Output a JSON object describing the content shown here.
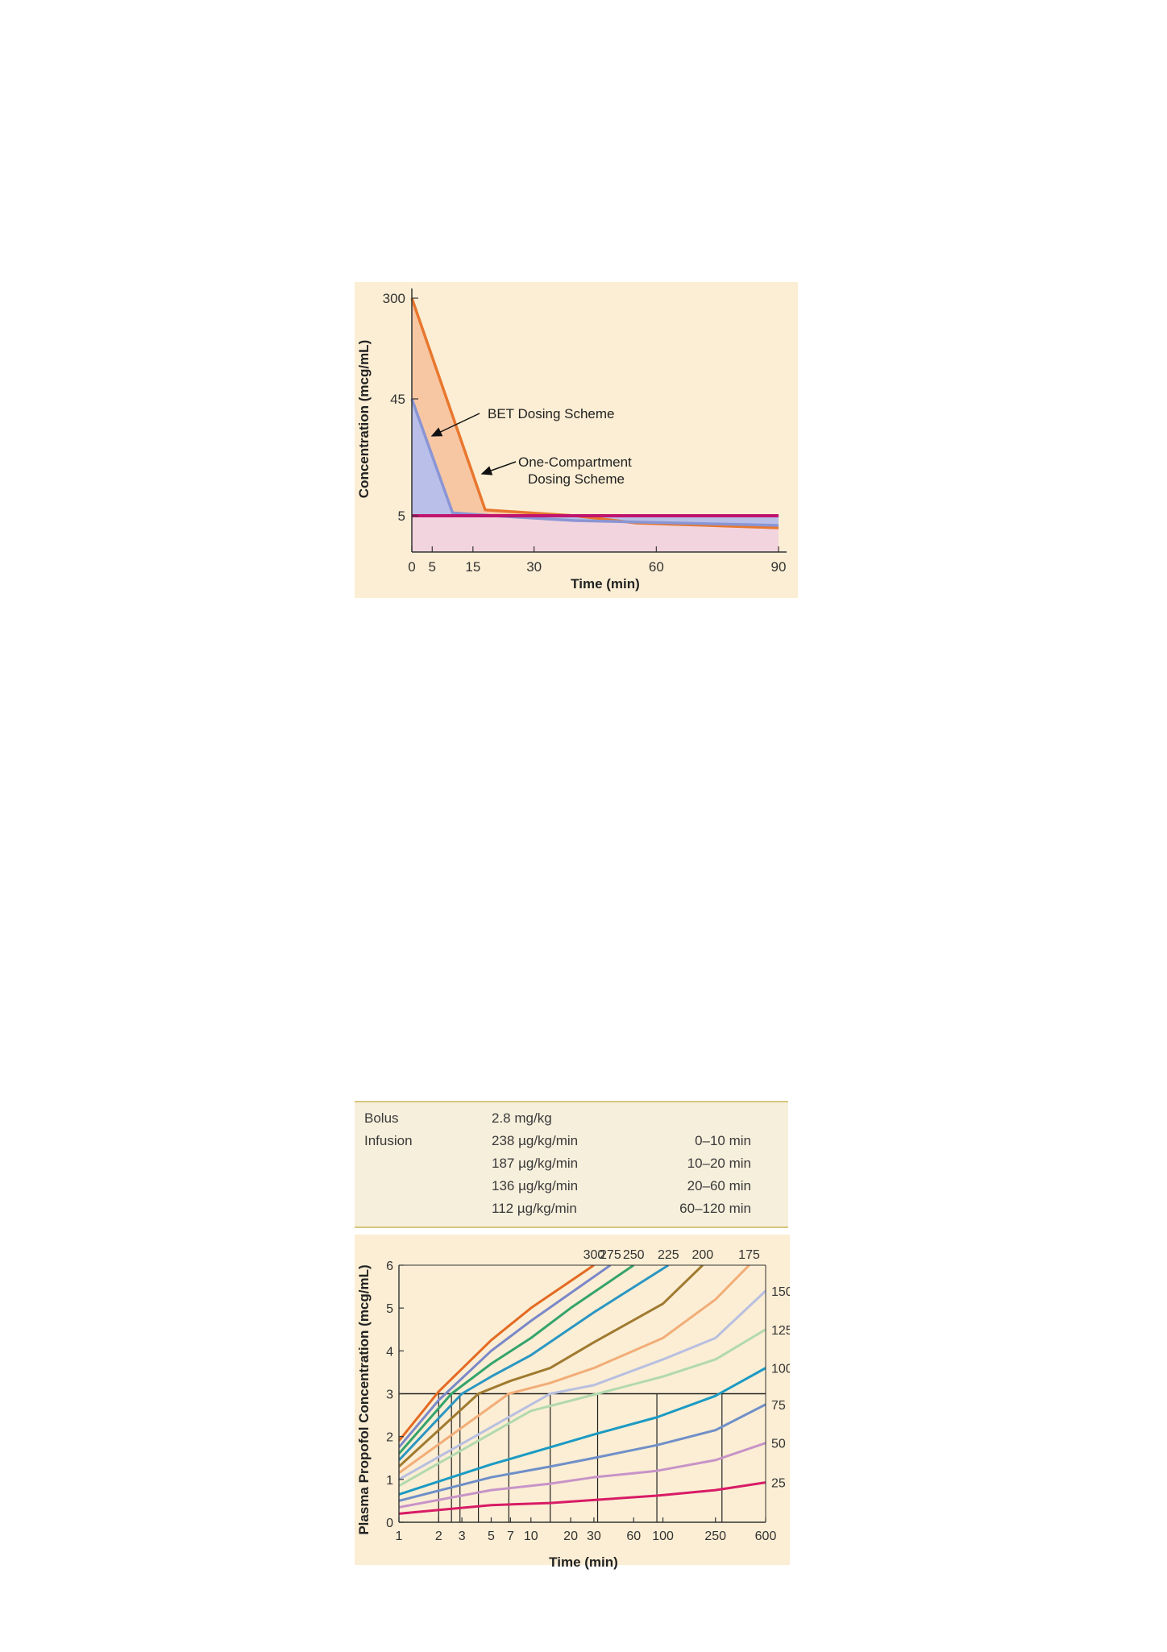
{
  "charts": [
    {
      "chart_data": {
        "type": "area",
        "xlabel": "Time (min)",
        "ylabel": "Concentration (mcg/mL)",
        "xticks": [
          0,
          5,
          15,
          30,
          60,
          90
        ],
        "yticks": [
          5,
          45,
          300
        ],
        "xlim": [
          0,
          92
        ],
        "ylim_label": "non-linear scale: 5, 45, 300",
        "colors": {
          "background": "#fbeed4",
          "one_compartment": "#e8772e",
          "bet": "#8a95d4",
          "target": "#c0156e"
        },
        "series": [
          {
            "name": "One-Compartment Dosing Scheme",
            "x": [
              0,
              18,
              40,
              55,
              90
            ],
            "y": [
              300,
              7,
              5,
              4.4,
              4
            ]
          },
          {
            "name": "BET Dosing Scheme",
            "x": [
              0,
              10,
              20,
              40,
              90
            ],
            "y": [
              45,
              6,
              5,
              4.6,
              4.2
            ]
          },
          {
            "name": "",
            "x": [
              0,
              90
            ],
            "y": [
              5,
              5
            ]
          }
        ],
        "annotations": [
          "BET Dosing Scheme",
          "One-Compartment",
          "Dosing Scheme"
        ]
      }
    },
    {
      "table": {
        "rows": [
          {
            "label": "Bolus",
            "rate": "2.8 mg/kg",
            "time": ""
          },
          {
            "label": "Infusion",
            "rate": "238 µg/kg/min",
            "time": "0–10 min"
          },
          {
            "label": "",
            "rate": "187 µg/kg/min",
            "time": "10–20 min"
          },
          {
            "label": "",
            "rate": "136 µg/kg/min",
            "time": "20–60 min"
          },
          {
            "label": "",
            "rate": "112 µg/kg/min",
            "time": "60–120 min"
          }
        ]
      }
    },
    {
      "chart_data": {
        "type": "line",
        "xlabel": "Time (min)",
        "ylabel": "Plasma Propofol Concentration (mcg/mL)",
        "xscale": "log",
        "xticks": [
          1,
          2,
          3,
          5,
          7,
          10,
          20,
          30,
          60,
          100,
          250,
          600
        ],
        "yticks": [
          0,
          1,
          2,
          3,
          4,
          5,
          6
        ],
        "xlim": [
          1,
          600
        ],
        "ylim": [
          0,
          6
        ],
        "reference_line_y": 3,
        "vertical_lines_x": [
          2,
          2.5,
          2.9,
          4,
          6.8,
          14,
          32,
          90,
          280
        ],
        "series": [
          {
            "name": "300",
            "color": "#e36a22",
            "x": [
              1,
              2,
              5,
              10,
              30
            ],
            "y": [
              1.9,
              3.05,
              4.25,
              5,
              6
            ]
          },
          {
            "name": "275",
            "color": "#7b88c8",
            "x": [
              1,
              2,
              5,
              10,
              40
            ],
            "y": [
              1.75,
              2.85,
              4,
              4.7,
              6
            ]
          },
          {
            "name": "250",
            "color": "#35a36c",
            "x": [
              1,
              2.5,
              5,
              10,
              20,
              60
            ],
            "y": [
              1.6,
              3,
              3.7,
              4.3,
              5,
              6
            ]
          },
          {
            "name": "225",
            "color": "#2b96c2",
            "x": [
              1,
              3,
              5,
              10,
              30,
              110
            ],
            "y": [
              1.45,
              3,
              3.4,
              3.9,
              4.9,
              6
            ]
          },
          {
            "name": "200",
            "color": "#a07a30",
            "x": [
              1,
              4,
              7,
              14,
              30,
              100,
              200
            ],
            "y": [
              1.3,
              3,
              3.3,
              3.6,
              4.2,
              5.1,
              6
            ]
          },
          {
            "name": "175",
            "color": "#f2ad78",
            "x": [
              1,
              6.8,
              14,
              30,
              100,
              250,
              450
            ],
            "y": [
              1.15,
              3,
              3.25,
              3.6,
              4.3,
              5.2,
              6
            ]
          },
          {
            "name": "150",
            "color": "#b8bfe0",
            "x": [
              1,
              14,
              30,
              100,
              250,
              600
            ],
            "y": [
              1,
              3,
              3.2,
              3.8,
              4.3,
              5.4
            ]
          },
          {
            "name": "125",
            "color": "#b2d9ae",
            "x": [
              1,
              10,
              32,
              100,
              250,
              600
            ],
            "y": [
              0.85,
              2.6,
              3,
              3.4,
              3.8,
              4.5
            ]
          },
          {
            "name": "100",
            "color": "#1b9ac3",
            "x": [
              1,
              5,
              14,
              30,
              90,
              250,
              600
            ],
            "y": [
              0.65,
              1.35,
              1.75,
              2.05,
              2.45,
              2.95,
              3.6
            ]
          },
          {
            "name": "75",
            "color": "#6f8fc8",
            "x": [
              1,
              5,
              14,
              30,
              90,
              250,
              600
            ],
            "y": [
              0.5,
              1.05,
              1.3,
              1.5,
              1.8,
              2.15,
              2.75
            ]
          },
          {
            "name": "50",
            "color": "#c793c8",
            "x": [
              1,
              5,
              14,
              30,
              90,
              250,
              600
            ],
            "y": [
              0.35,
              0.75,
              0.9,
              1.05,
              1.2,
              1.45,
              1.85
            ]
          },
          {
            "name": "25",
            "color": "#d81b66",
            "x": [
              1,
              5,
              14,
              30,
              90,
              250,
              600
            ],
            "y": [
              0.2,
              0.4,
              0.45,
              0.52,
              0.62,
              0.75,
              0.93
            ]
          }
        ]
      }
    }
  ]
}
